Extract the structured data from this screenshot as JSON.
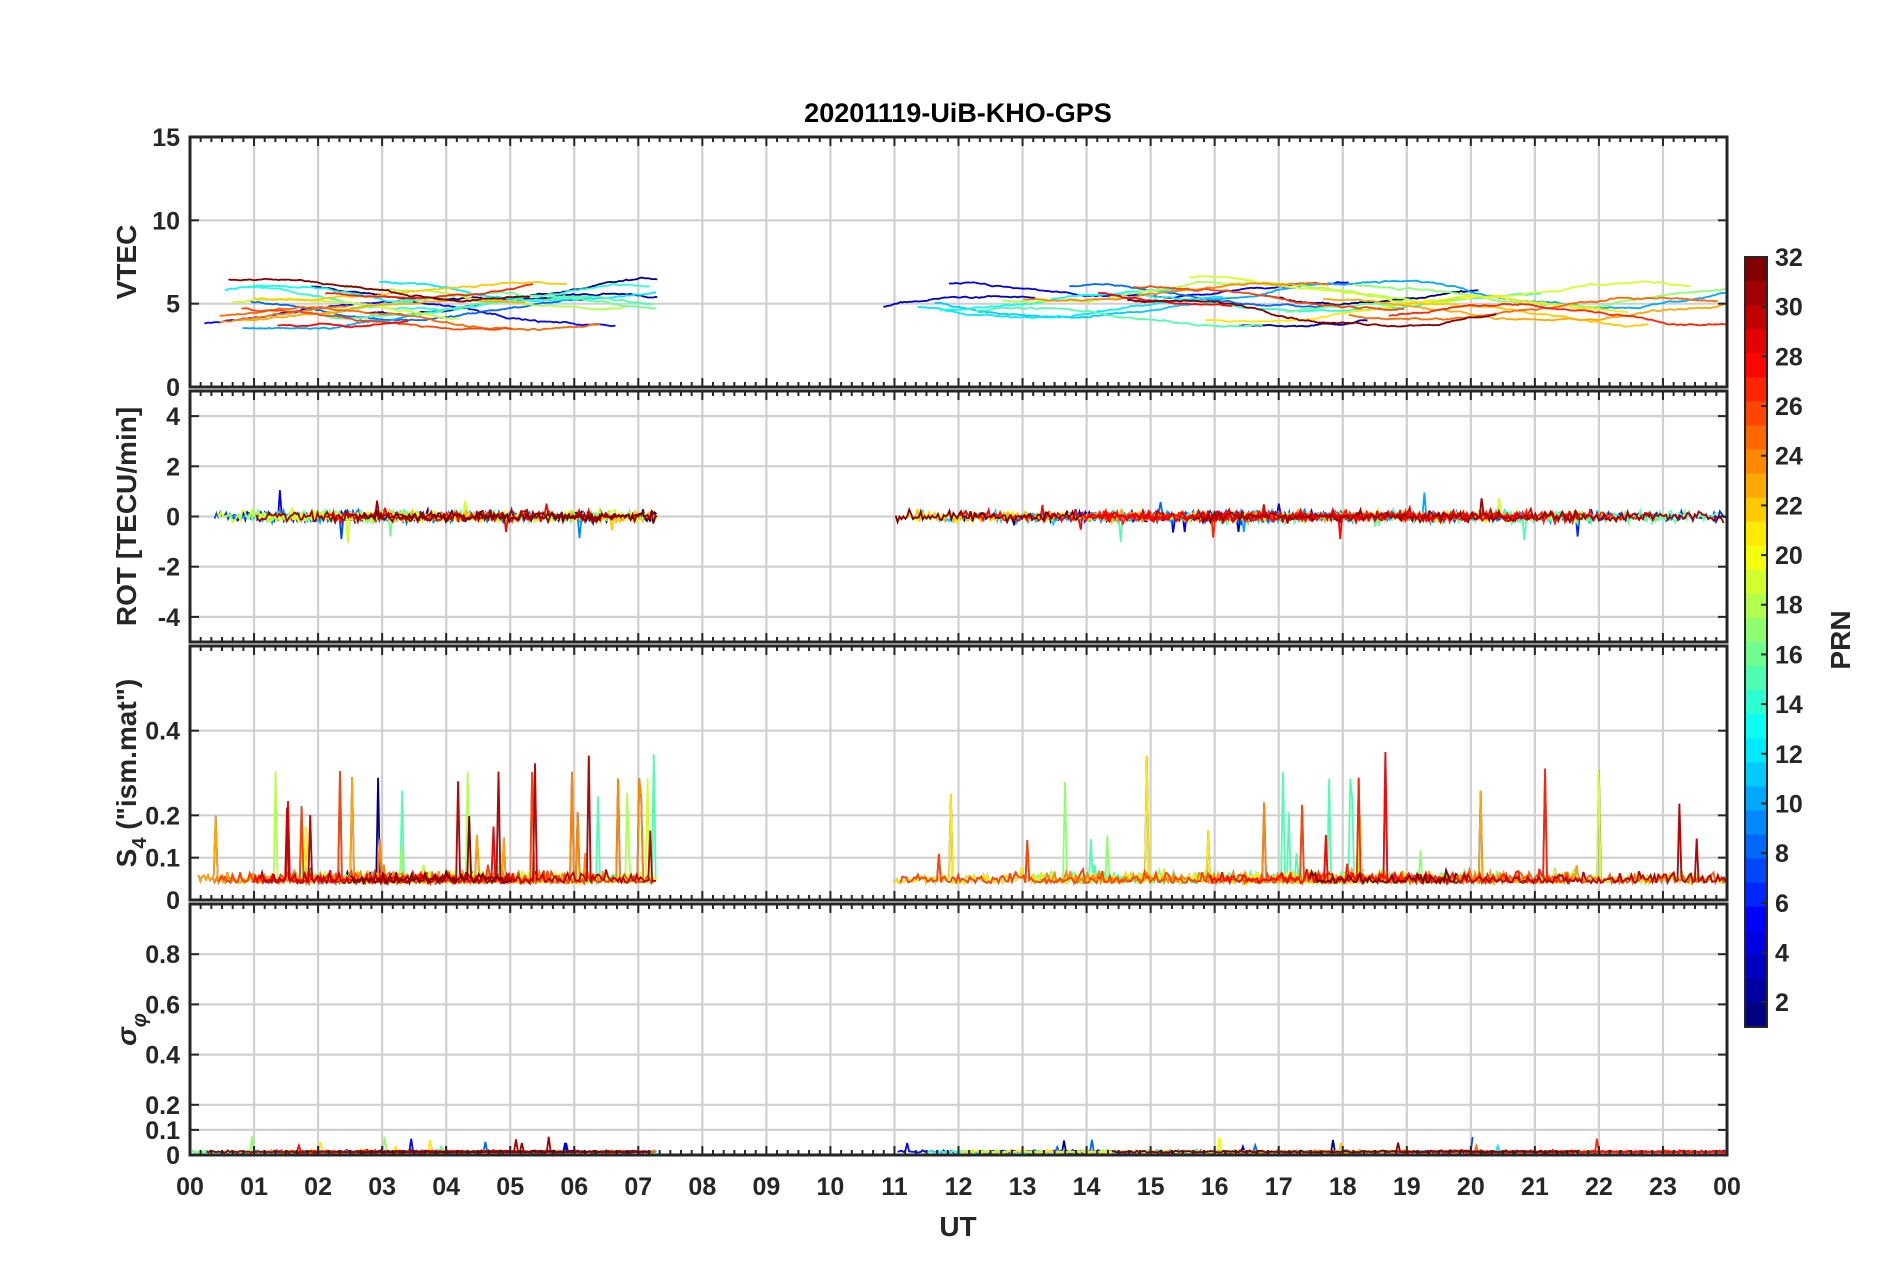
{
  "figure": {
    "title": "20201119-UiB-KHO-GPS",
    "xlabel": "UT",
    "colorbar_label": "PRN"
  },
  "chart_data": [
    {
      "type": "line",
      "panel": "vtec",
      "ylabel": "VTEC",
      "ylim": [
        0,
        15
      ],
      "yticks": [
        "0",
        "5",
        "10",
        "15"
      ],
      "grid": true,
      "data_gaps_ut": [
        [
          7.3,
          10.7
        ]
      ],
      "series_description_color_by": "PRN"
    },
    {
      "type": "line",
      "panel": "rot",
      "ylabel": "ROT [TECU/min]",
      "ylim": [
        -5,
        5
      ],
      "yticks": [
        "-4",
        "-2",
        "0",
        "2",
        "4"
      ],
      "grid": true
    },
    {
      "type": "line",
      "panel": "s4",
      "ylabel": "S4 (\"ism.mat\")",
      "ylabel_main": "S",
      "ylabel_sub": "4",
      "ylabel_rest": " (\"ism.mat\")",
      "ylim": [
        0,
        0.6
      ],
      "yticks": [
        "0",
        "0.1",
        "0.2",
        "0.4"
      ],
      "grid": true
    },
    {
      "type": "line",
      "panel": "sigma",
      "ylabel": "σφ",
      "ylabel_main": "σ",
      "ylabel_sub": "φ",
      "ylim": [
        0,
        1
      ],
      "yticks": [
        "0",
        "0.1",
        "0.2",
        "0.4",
        "0.6",
        "0.8"
      ],
      "grid": true
    }
  ],
  "x_axis": {
    "range_ut": [
      0,
      24
    ],
    "ticks": [
      "00",
      "01",
      "02",
      "03",
      "04",
      "05",
      "06",
      "07",
      "08",
      "09",
      "10",
      "11",
      "12",
      "13",
      "14",
      "15",
      "16",
      "17",
      "18",
      "19",
      "20",
      "21",
      "22",
      "23",
      "00"
    ]
  },
  "colorbar": {
    "range": [
      1,
      32
    ],
    "colormap": "jet",
    "ticks": [
      "2",
      "4",
      "6",
      "8",
      "10",
      "12",
      "14",
      "16",
      "18",
      "20",
      "22",
      "24",
      "26",
      "28",
      "30",
      "32"
    ]
  }
}
